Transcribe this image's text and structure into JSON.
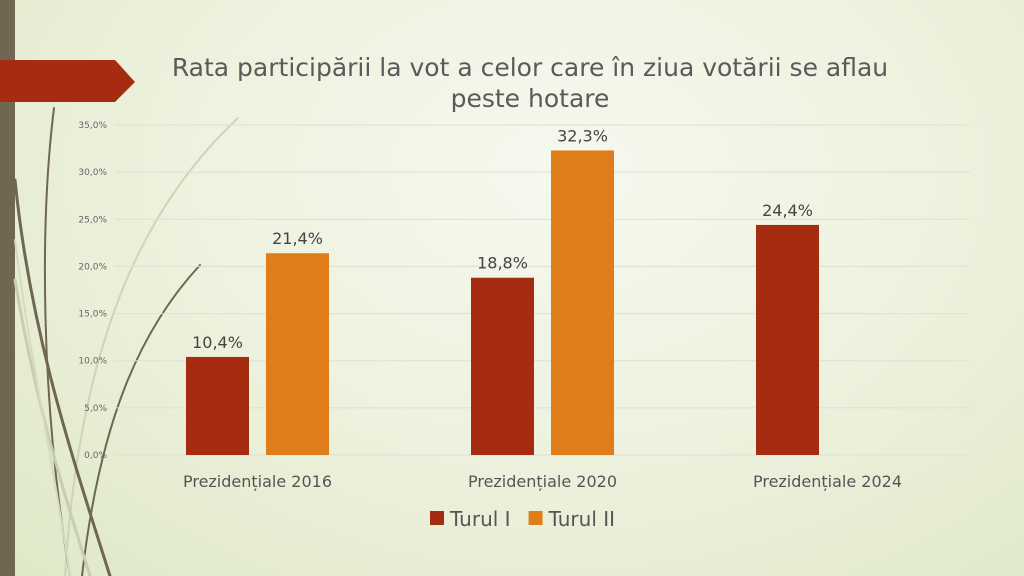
{
  "chart_data": {
    "type": "bar",
    "title": "Rata participării la vot a celor care în ziua votării se aflau peste hotare",
    "categories": [
      "Prezidențiale 2016",
      "Prezidențiale 2020",
      "Prezidențiale 2024"
    ],
    "series": [
      {
        "name": "Turul I",
        "color": "#a52c10",
        "values": [
          10.4,
          18.8,
          24.4
        ],
        "labels": [
          "10,4%",
          "18,8%",
          "24,4%"
        ]
      },
      {
        "name": "Turul II",
        "color": "#de7d1a",
        "values": [
          21.4,
          32.3,
          null
        ],
        "labels": [
          "21,4%",
          "32,3%",
          null
        ]
      }
    ],
    "yticks": [
      "0,0%",
      "5,0%",
      "10,0%",
      "15,0%",
      "20,0%",
      "25,0%",
      "30,0%",
      "35,0%"
    ],
    "ylim": [
      0,
      35
    ],
    "grid": true,
    "legend": "bottom"
  }
}
